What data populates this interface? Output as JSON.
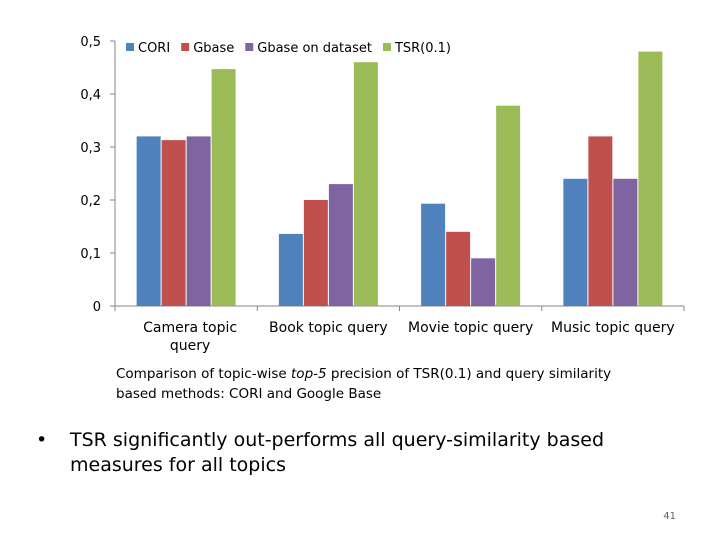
{
  "chart_data": {
    "type": "bar",
    "categories": [
      "Camera topic query",
      "Book topic query",
      "Movie topic query",
      "Music topic query"
    ],
    "series": [
      {
        "name": "CORI",
        "color": "#4f81bd",
        "values": [
          0.32,
          0.136,
          0.193,
          0.24
        ]
      },
      {
        "name": "Gbase",
        "color": "#c0504d",
        "values": [
          0.313,
          0.2,
          0.14,
          0.32
        ]
      },
      {
        "name": "Gbase on dataset",
        "color": "#8064a2",
        "values": [
          0.32,
          0.23,
          0.09,
          0.24
        ]
      },
      {
        "name": "TSR(0.1)",
        "color": "#9bbb59",
        "values": [
          0.447,
          0.46,
          0.378,
          0.48
        ]
      }
    ],
    "yticks": [
      "0",
      "0,1",
      "0,2",
      "0,3",
      "0,4",
      "0,5"
    ],
    "ylim": [
      0,
      0.5
    ],
    "grid": false,
    "legend_position": "top"
  },
  "caption": {
    "prefix": "Comparison of topic-wise ",
    "emphasis": "top-5",
    "suffix": " precision of TSR(0.1) and query similarity based methods: CORI and Google Base"
  },
  "bullet": {
    "marker": "•",
    "text": "TSR significantly out-performs all query-similarity based measures for all topics"
  },
  "page_number": "41"
}
